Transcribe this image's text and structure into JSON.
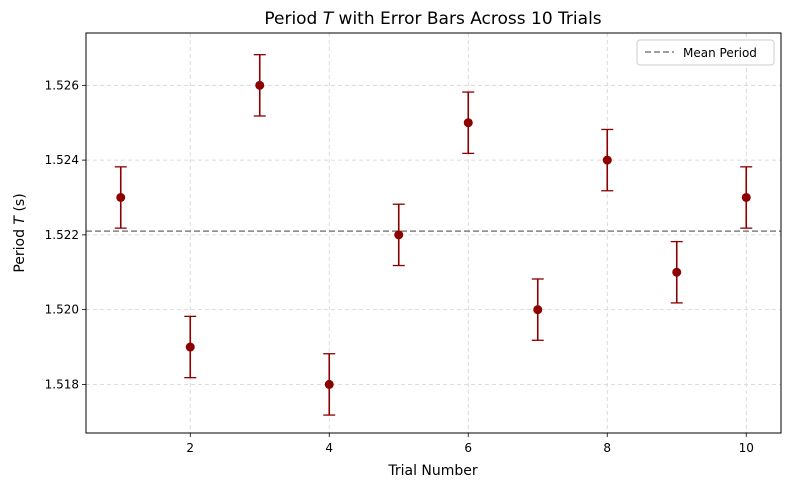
{
  "chart_data": {
    "type": "scatter",
    "title_prefix": "Period ",
    "title_symbol": "T",
    "title_suffix": " with Error Bars Across 10 Trials",
    "xlabel": "Trial Number",
    "ylabel_prefix": "Period ",
    "ylabel_symbol": "T",
    "ylabel_suffix": " (s)",
    "xlim": [
      0.5,
      10.5
    ],
    "ylim": [
      1.5167,
      1.5274
    ],
    "xticks": [
      2,
      4,
      6,
      8,
      10
    ],
    "yticks": [
      1.518,
      1.52,
      1.522,
      1.524,
      1.526
    ],
    "ytick_format_decimals": 3,
    "grid": true,
    "legend_position": "top-right",
    "series": [
      {
        "kind": "errorbar",
        "color": "#8b0000",
        "x": [
          1,
          2,
          3,
          4,
          5,
          6,
          7,
          8,
          9,
          10
        ],
        "y": [
          1.523,
          1.519,
          1.526,
          1.518,
          1.522,
          1.525,
          1.52,
          1.524,
          1.521,
          1.523
        ],
        "yerr": 0.00082
      },
      {
        "kind": "hline",
        "name": "Mean Period",
        "y": 1.5221,
        "color": "#808080",
        "style": "dashed"
      }
    ]
  }
}
